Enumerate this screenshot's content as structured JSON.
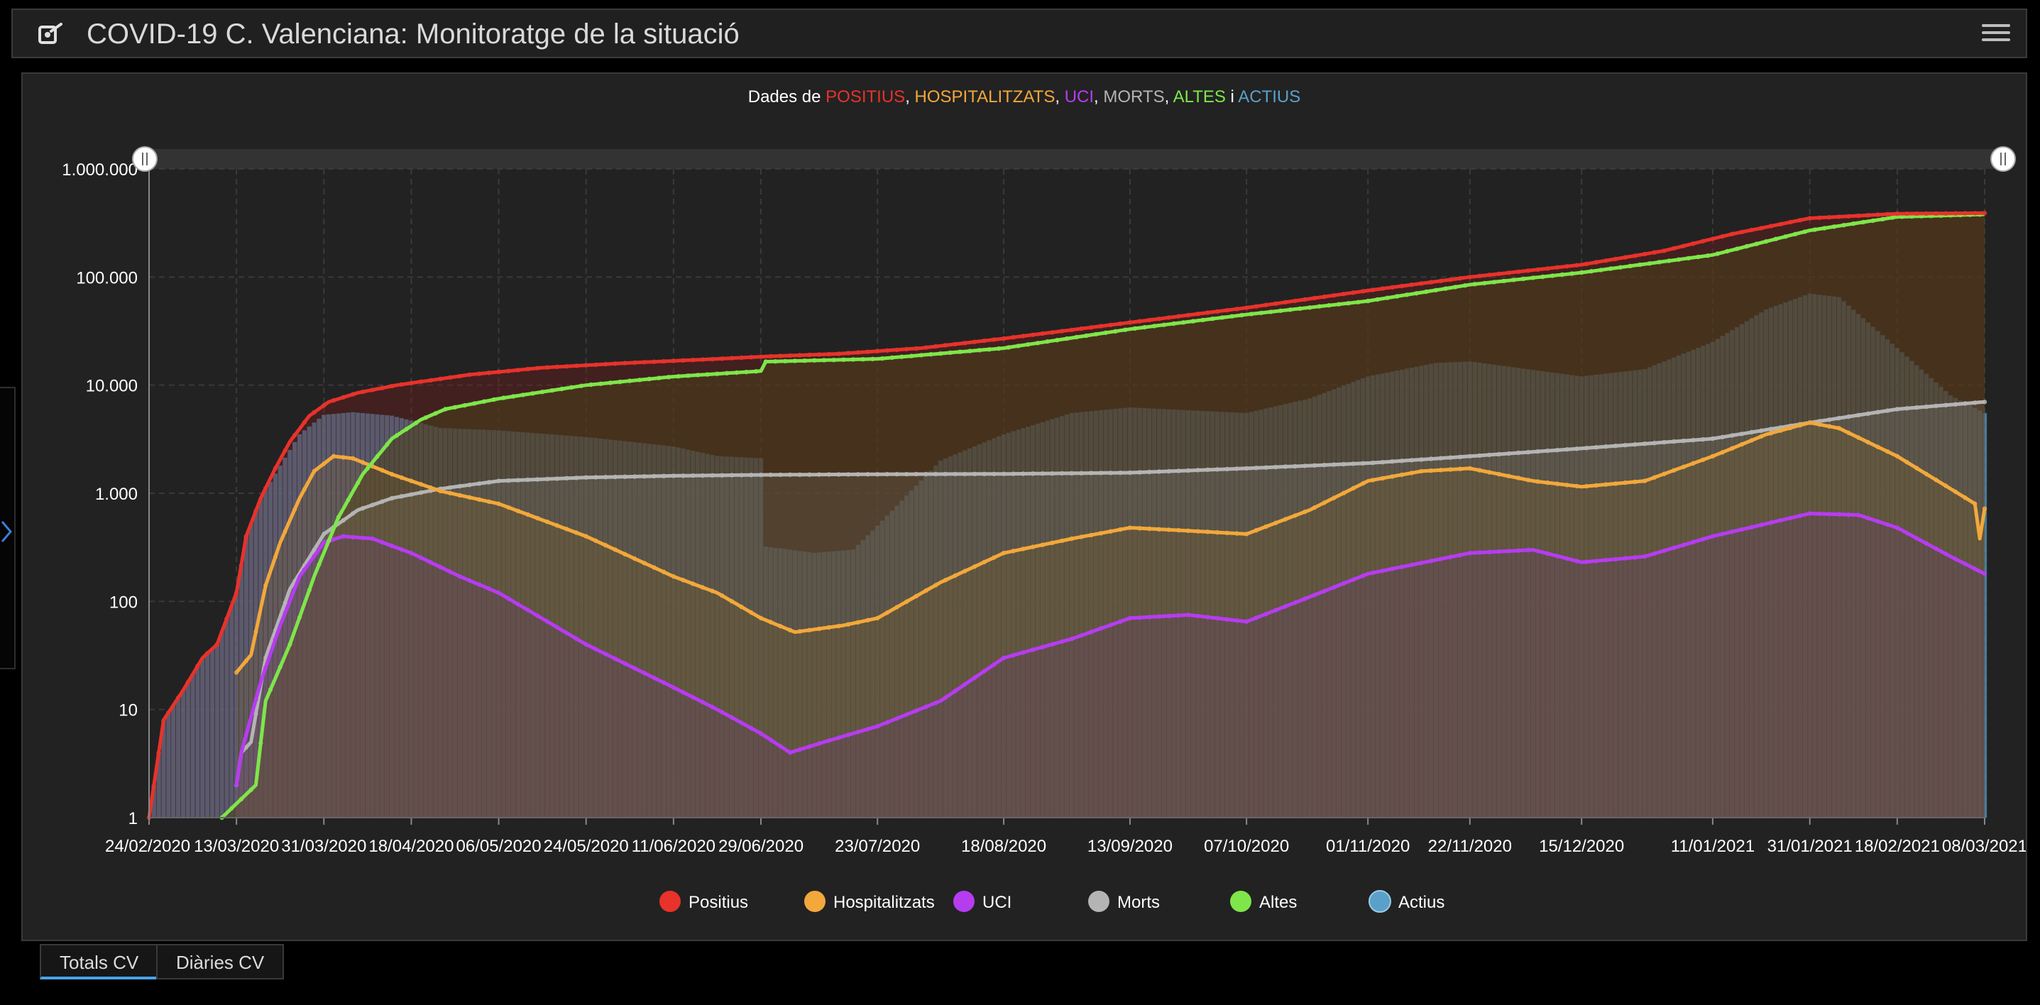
{
  "header": {
    "title": "COVID-19 C. Valenciana: Monitoratge de la situació"
  },
  "tabs": [
    {
      "label": "Totals CV",
      "active": true
    },
    {
      "label": "Diàries CV",
      "active": false
    }
  ],
  "colors": {
    "positius": "#e8322b",
    "hospitalitzats": "#f2a83b",
    "uci": "#b63cf0",
    "morts": "#b4b4b4",
    "altes": "#7ee64a",
    "actius": "#5aa0c8"
  },
  "chart_data": {
    "type": "line",
    "title_parts": [
      {
        "text": "Dades de ",
        "key": null
      },
      {
        "text": "POSITIUS",
        "key": "positius"
      },
      {
        "text": ", ",
        "key": null
      },
      {
        "text": "HOSPITALITZATS",
        "key": "hospitalitzats"
      },
      {
        "text": ", ",
        "key": null
      },
      {
        "text": "UCI",
        "key": "uci"
      },
      {
        "text": ", ",
        "key": null
      },
      {
        "text": "MORTS",
        "key": "morts"
      },
      {
        "text": ", ",
        "key": null
      },
      {
        "text": "ALTES",
        "key": "altes"
      },
      {
        "text": " i ",
        "key": null
      },
      {
        "text": "ACTIUS",
        "key": "actius"
      }
    ],
    "y_scale": "log",
    "ylim": [
      1,
      1000000
    ],
    "y_ticks": [
      {
        "value": 1,
        "label": "1"
      },
      {
        "value": 10,
        "label": "10"
      },
      {
        "value": 100,
        "label": "100"
      },
      {
        "value": 1000,
        "label": "1.000"
      },
      {
        "value": 10000,
        "label": "10.000"
      },
      {
        "value": 100000,
        "label": "100.000"
      },
      {
        "value": 1000000,
        "label": "1.000.000"
      }
    ],
    "x_range": [
      "2020-02-24",
      "2021-03-08"
    ],
    "x_ticks": [
      "24/02/2020",
      "13/03/2020",
      "31/03/2020",
      "18/04/2020",
      "06/05/2020",
      "24/05/2020",
      "11/06/2020",
      "29/06/2020",
      "23/07/2020",
      "18/08/2020",
      "13/09/2020",
      "07/10/2020",
      "01/11/2020",
      "22/11/2020",
      "15/12/2020",
      "11/01/2021",
      "31/01/2021",
      "18/02/2021",
      "08/03/2021"
    ],
    "grid": true,
    "legend_position": "bottom",
    "legend": [
      {
        "key": "positius",
        "label": "Positius"
      },
      {
        "key": "hospitalitzats",
        "label": "Hospitalitzats"
      },
      {
        "key": "uci",
        "label": "UCI"
      },
      {
        "key": "morts",
        "label": "Morts"
      },
      {
        "key": "altes",
        "label": "Altes"
      },
      {
        "key": "actius",
        "label": "Actius"
      }
    ],
    "series": [
      {
        "key": "positius",
        "name": "Positius",
        "style": "line",
        "points": [
          [
            "2020-02-24",
            1
          ],
          [
            "2020-02-27",
            8
          ],
          [
            "2020-03-02",
            15
          ],
          [
            "2020-03-06",
            30
          ],
          [
            "2020-03-09",
            40
          ],
          [
            "2020-03-13",
            120
          ],
          [
            "2020-03-15",
            400
          ],
          [
            "2020-03-18",
            900
          ],
          [
            "2020-03-21",
            1700
          ],
          [
            "2020-03-24",
            3000
          ],
          [
            "2020-03-28",
            5200
          ],
          [
            "2020-04-01",
            7000
          ],
          [
            "2020-04-07",
            8500
          ],
          [
            "2020-04-15",
            10000
          ],
          [
            "2020-04-30",
            12500
          ],
          [
            "2020-05-15",
            14500
          ],
          [
            "2020-06-01",
            16000
          ],
          [
            "2020-06-20",
            17500
          ],
          [
            "2020-07-01",
            18500
          ],
          [
            "2020-07-15",
            19500
          ],
          [
            "2020-08-01",
            22000
          ],
          [
            "2020-08-18",
            27000
          ],
          [
            "2020-09-13",
            38000
          ],
          [
            "2020-10-07",
            52000
          ],
          [
            "2020-11-01",
            75000
          ],
          [
            "2020-11-22",
            100000
          ],
          [
            "2020-12-15",
            130000
          ],
          [
            "2021-01-01",
            175000
          ],
          [
            "2021-01-15",
            250000
          ],
          [
            "2021-01-31",
            350000
          ],
          [
            "2021-02-18",
            385000
          ],
          [
            "2021-03-08",
            390000
          ]
        ]
      },
      {
        "key": "altes",
        "name": "Altes",
        "style": "line",
        "points": [
          [
            "2020-03-10",
            1
          ],
          [
            "2020-03-17",
            2
          ],
          [
            "2020-03-19",
            12
          ],
          [
            "2020-03-24",
            40
          ],
          [
            "2020-03-29",
            170
          ],
          [
            "2020-04-03",
            600
          ],
          [
            "2020-04-08",
            1500
          ],
          [
            "2020-04-14",
            3200
          ],
          [
            "2020-04-20",
            4800
          ],
          [
            "2020-04-25",
            6000
          ],
          [
            "2020-05-06",
            7500
          ],
          [
            "2020-05-24",
            10000
          ],
          [
            "2020-06-11",
            12000
          ],
          [
            "2020-06-29",
            13500
          ],
          [
            "2020-06-30",
            16500
          ],
          [
            "2020-07-23",
            17500
          ],
          [
            "2020-08-18",
            22000
          ],
          [
            "2020-09-13",
            33000
          ],
          [
            "2020-10-07",
            45000
          ],
          [
            "2020-11-01",
            60000
          ],
          [
            "2020-11-22",
            85000
          ],
          [
            "2020-12-15",
            110000
          ],
          [
            "2021-01-11",
            160000
          ],
          [
            "2021-01-31",
            270000
          ],
          [
            "2021-02-18",
            360000
          ],
          [
            "2021-03-08",
            380000
          ]
        ]
      },
      {
        "key": "hospitalitzats",
        "name": "Hospitalitzats",
        "style": "line",
        "points": [
          [
            "2020-03-13",
            22
          ],
          [
            "2020-03-16",
            32
          ],
          [
            "2020-03-19",
            140
          ],
          [
            "2020-03-22",
            350
          ],
          [
            "2020-03-26",
            900
          ],
          [
            "2020-03-29",
            1600
          ],
          [
            "2020-04-02",
            2200
          ],
          [
            "2020-04-06",
            2100
          ],
          [
            "2020-04-14",
            1500
          ],
          [
            "2020-04-24",
            1050
          ],
          [
            "2020-05-06",
            800
          ],
          [
            "2020-05-24",
            400
          ],
          [
            "2020-06-11",
            170
          ],
          [
            "2020-06-20",
            120
          ],
          [
            "2020-06-29",
            70
          ],
          [
            "2020-07-06",
            52
          ],
          [
            "2020-07-16",
            60
          ],
          [
            "2020-07-23",
            70
          ],
          [
            "2020-08-05",
            150
          ],
          [
            "2020-08-18",
            280
          ],
          [
            "2020-09-01",
            380
          ],
          [
            "2020-09-13",
            480
          ],
          [
            "2020-09-25",
            450
          ],
          [
            "2020-10-07",
            420
          ],
          [
            "2020-10-20",
            700
          ],
          [
            "2020-11-01",
            1300
          ],
          [
            "2020-11-12",
            1600
          ],
          [
            "2020-11-22",
            1700
          ],
          [
            "2020-12-05",
            1300
          ],
          [
            "2020-12-15",
            1150
          ],
          [
            "2020-12-28",
            1300
          ],
          [
            "2021-01-11",
            2200
          ],
          [
            "2021-01-22",
            3500
          ],
          [
            "2021-01-31",
            4500
          ],
          [
            "2021-02-06",
            4000
          ],
          [
            "2021-02-18",
            2200
          ],
          [
            "2021-03-01",
            1100
          ],
          [
            "2021-03-06",
            800
          ],
          [
            "2021-03-07",
            380
          ],
          [
            "2021-03-08",
            720
          ]
        ]
      },
      {
        "key": "uci",
        "name": "UCI",
        "style": "line",
        "points": [
          [
            "2020-03-13",
            2
          ],
          [
            "2020-03-14",
            4
          ],
          [
            "2020-03-18",
            18
          ],
          [
            "2020-03-22",
            60
          ],
          [
            "2020-03-26",
            170
          ],
          [
            "2020-03-31",
            350
          ],
          [
            "2020-04-04",
            400
          ],
          [
            "2020-04-10",
            380
          ],
          [
            "2020-04-18",
            280
          ],
          [
            "2020-04-28",
            170
          ],
          [
            "2020-05-06",
            120
          ],
          [
            "2020-05-24",
            40
          ],
          [
            "2020-06-11",
            16
          ],
          [
            "2020-06-20",
            10
          ],
          [
            "2020-06-29",
            6
          ],
          [
            "2020-07-05",
            4
          ],
          [
            "2020-07-12",
            5
          ],
          [
            "2020-07-23",
            7
          ],
          [
            "2020-08-05",
            12
          ],
          [
            "2020-08-18",
            30
          ],
          [
            "2020-09-01",
            45
          ],
          [
            "2020-09-13",
            70
          ],
          [
            "2020-09-25",
            75
          ],
          [
            "2020-10-07",
            65
          ],
          [
            "2020-10-20",
            110
          ],
          [
            "2020-11-01",
            180
          ],
          [
            "2020-11-22",
            280
          ],
          [
            "2020-12-05",
            300
          ],
          [
            "2020-12-15",
            230
          ],
          [
            "2020-12-28",
            260
          ],
          [
            "2021-01-11",
            400
          ],
          [
            "2021-01-31",
            650
          ],
          [
            "2021-02-10",
            630
          ],
          [
            "2021-02-18",
            480
          ],
          [
            "2021-03-01",
            260
          ],
          [
            "2021-03-08",
            180
          ]
        ]
      },
      {
        "key": "morts",
        "name": "Morts",
        "style": "line",
        "points": [
          [
            "2020-03-13",
            2
          ],
          [
            "2020-03-14",
            4
          ],
          [
            "2020-03-16",
            5
          ],
          [
            "2020-03-19",
            30
          ],
          [
            "2020-03-24",
            130
          ],
          [
            "2020-03-31",
            420
          ],
          [
            "2020-04-07",
            700
          ],
          [
            "2020-04-14",
            900
          ],
          [
            "2020-04-24",
            1100
          ],
          [
            "2020-05-06",
            1300
          ],
          [
            "2020-05-24",
            1400
          ],
          [
            "2020-06-11",
            1450
          ],
          [
            "2020-06-29",
            1480
          ],
          [
            "2020-07-23",
            1500
          ],
          [
            "2020-08-18",
            1510
          ],
          [
            "2020-09-13",
            1550
          ],
          [
            "2020-10-07",
            1700
          ],
          [
            "2020-11-01",
            1900
          ],
          [
            "2020-11-22",
            2200
          ],
          [
            "2020-12-15",
            2600
          ],
          [
            "2021-01-11",
            3200
          ],
          [
            "2021-01-31",
            4500
          ],
          [
            "2021-02-18",
            6000
          ],
          [
            "2021-03-08",
            7000
          ]
        ]
      },
      {
        "key": "actius",
        "name": "Actius",
        "style": "bars",
        "points": [
          [
            "2020-02-24",
            1
          ],
          [
            "2020-02-27",
            8
          ],
          [
            "2020-03-02",
            15
          ],
          [
            "2020-03-06",
            30
          ],
          [
            "2020-03-09",
            40
          ],
          [
            "2020-03-13",
            120
          ],
          [
            "2020-03-15",
            400
          ],
          [
            "2020-03-18",
            900
          ],
          [
            "2020-03-22",
            1800
          ],
          [
            "2020-03-26",
            3500
          ],
          [
            "2020-03-31",
            5300
          ],
          [
            "2020-04-06",
            5600
          ],
          [
            "2020-04-14",
            5200
          ],
          [
            "2020-04-24",
            4000
          ],
          [
            "2020-05-06",
            3800
          ],
          [
            "2020-05-24",
            3300
          ],
          [
            "2020-06-11",
            2700
          ],
          [
            "2020-06-20",
            2200
          ],
          [
            "2020-06-29",
            2100
          ],
          [
            "2020-06-30",
            320
          ],
          [
            "2020-07-10",
            280
          ],
          [
            "2020-07-18",
            300
          ],
          [
            "2020-07-23",
            500
          ],
          [
            "2020-08-05",
            2000
          ],
          [
            "2020-08-18",
            3500
          ],
          [
            "2020-09-01",
            5500
          ],
          [
            "2020-09-13",
            6200
          ],
          [
            "2020-10-07",
            5500
          ],
          [
            "2020-10-20",
            7500
          ],
          [
            "2020-11-01",
            12000
          ],
          [
            "2020-11-15",
            16000
          ],
          [
            "2020-11-22",
            16500
          ],
          [
            "2020-12-15",
            12000
          ],
          [
            "2020-12-28",
            14000
          ],
          [
            "2021-01-11",
            25000
          ],
          [
            "2021-01-22",
            50000
          ],
          [
            "2021-01-31",
            70000
          ],
          [
            "2021-02-06",
            65000
          ],
          [
            "2021-02-18",
            22000
          ],
          [
            "2021-03-01",
            8000
          ],
          [
            "2021-03-08",
            5500
          ]
        ]
      }
    ]
  }
}
